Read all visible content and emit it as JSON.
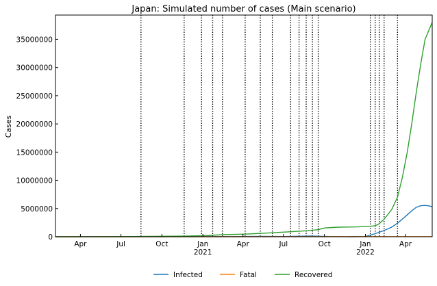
{
  "chart_data": {
    "type": "line",
    "title": "Japan: Simulated number of cases (Main scenario)",
    "xlabel": "",
    "ylabel": "Cases",
    "xlim": [
      "2020-02-05",
      "2022-05-31"
    ],
    "ylim": [
      0,
      39300000
    ],
    "grid": false,
    "legend_position": "bottom-center",
    "x_ticks": [
      {
        "date": "2020-04-01",
        "label": "Apr",
        "sublabel": ""
      },
      {
        "date": "2020-07-01",
        "label": "Jul",
        "sublabel": ""
      },
      {
        "date": "2020-10-01",
        "label": "Oct",
        "sublabel": ""
      },
      {
        "date": "2021-01-01",
        "label": "Jan",
        "sublabel": "2021"
      },
      {
        "date": "2021-04-01",
        "label": "Apr",
        "sublabel": ""
      },
      {
        "date": "2021-07-01",
        "label": "Jul",
        "sublabel": ""
      },
      {
        "date": "2021-10-01",
        "label": "Oct",
        "sublabel": ""
      },
      {
        "date": "2022-01-01",
        "label": "Jan",
        "sublabel": "2022"
      },
      {
        "date": "2022-04-01",
        "label": "Apr",
        "sublabel": ""
      }
    ],
    "y_ticks": [
      0,
      5000000,
      10000000,
      15000000,
      20000000,
      25000000,
      30000000,
      35000000
    ],
    "y_tick_labels": [
      "0",
      "5000000",
      "10000000",
      "15000000",
      "20000000",
      "25000000",
      "30000000",
      "35000000"
    ],
    "change_dates": [
      "2020-08-15",
      "2020-11-20",
      "2020-12-29",
      "2021-01-23",
      "2021-02-14",
      "2021-04-06",
      "2021-05-10",
      "2021-06-06",
      "2021-07-17",
      "2021-08-05",
      "2021-08-21",
      "2021-09-04",
      "2021-09-17",
      "2022-01-12",
      "2022-01-23",
      "2022-02-01",
      "2022-02-12",
      "2022-03-14"
    ],
    "series": [
      {
        "name": "Infected",
        "color": "#1f77b4",
        "points": [
          [
            "2020-02-05",
            0
          ],
          [
            "2020-06-01",
            3000
          ],
          [
            "2020-08-15",
            12000
          ],
          [
            "2020-12-01",
            25000
          ],
          [
            "2021-01-15",
            60000
          ],
          [
            "2021-03-01",
            30000
          ],
          [
            "2021-05-15",
            70000
          ],
          [
            "2021-07-01",
            40000
          ],
          [
            "2021-09-01",
            120000
          ],
          [
            "2021-10-15",
            20000
          ],
          [
            "2021-12-01",
            5000
          ],
          [
            "2022-01-01",
            40000
          ],
          [
            "2022-01-12",
            300000
          ],
          [
            "2022-01-23",
            550000
          ],
          [
            "2022-02-01",
            800000
          ],
          [
            "2022-02-12",
            1100000
          ],
          [
            "2022-03-01",
            1700000
          ],
          [
            "2022-03-14",
            2400000
          ],
          [
            "2022-04-01",
            3600000
          ],
          [
            "2022-04-15",
            4600000
          ],
          [
            "2022-04-25",
            5200000
          ],
          [
            "2022-05-05",
            5500000
          ],
          [
            "2022-05-15",
            5550000
          ],
          [
            "2022-05-25",
            5450000
          ],
          [
            "2022-05-31",
            5300000
          ]
        ]
      },
      {
        "name": "Fatal",
        "color": "#ff7f0e",
        "points": [
          [
            "2020-02-05",
            0
          ],
          [
            "2020-08-15",
            1200
          ],
          [
            "2021-01-01",
            3500
          ],
          [
            "2021-05-01",
            10500
          ],
          [
            "2021-09-01",
            17000
          ],
          [
            "2022-01-01",
            18500
          ],
          [
            "2022-03-14",
            25000
          ],
          [
            "2022-05-31",
            30000
          ]
        ]
      },
      {
        "name": "Recovered",
        "color": "#2ca02c",
        "points": [
          [
            "2020-02-05",
            0
          ],
          [
            "2020-06-01",
            15000
          ],
          [
            "2020-08-15",
            50000
          ],
          [
            "2020-11-20",
            110000
          ],
          [
            "2021-01-01",
            200000
          ],
          [
            "2021-02-14",
            380000
          ],
          [
            "2021-04-06",
            460000
          ],
          [
            "2021-06-06",
            700000
          ],
          [
            "2021-07-17",
            880000
          ],
          [
            "2021-08-21",
            1050000
          ],
          [
            "2021-09-17",
            1250000
          ],
          [
            "2021-10-01",
            1550000
          ],
          [
            "2021-11-01",
            1700000
          ],
          [
            "2021-12-15",
            1750000
          ],
          [
            "2022-01-12",
            1850000
          ],
          [
            "2022-01-23",
            1950000
          ],
          [
            "2022-02-01",
            2300000
          ],
          [
            "2022-02-12",
            3100000
          ],
          [
            "2022-03-01",
            4800000
          ],
          [
            "2022-03-14",
            7000000
          ],
          [
            "2022-03-25",
            10500000
          ],
          [
            "2022-04-05",
            15000000
          ],
          [
            "2022-04-15",
            20000000
          ],
          [
            "2022-04-25",
            25500000
          ],
          [
            "2022-05-05",
            30500000
          ],
          [
            "2022-05-15",
            35000000
          ],
          [
            "2022-05-31",
            38000000
          ]
        ]
      }
    ]
  }
}
